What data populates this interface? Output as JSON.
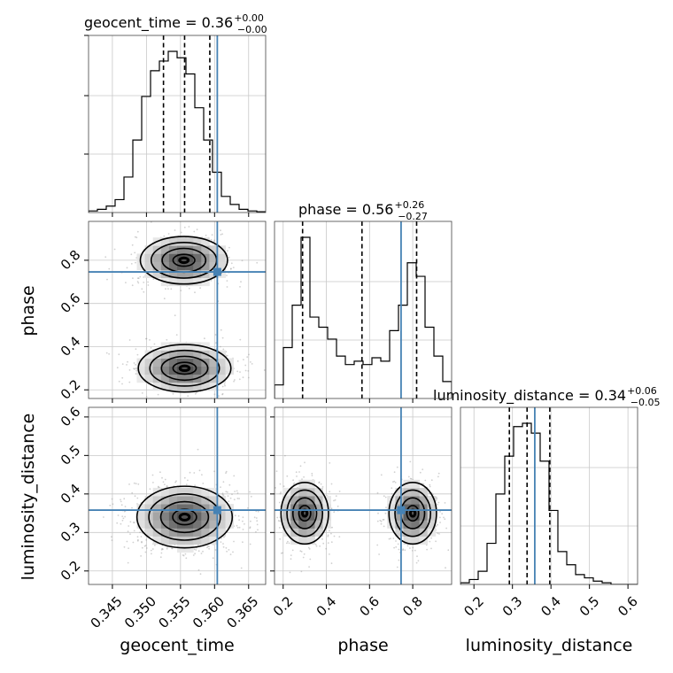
{
  "chart_data": {
    "type": "corner",
    "parameters": [
      {
        "name": "geocent_time",
        "label": "geocent_time",
        "title_text": "geocent_time = 0.36",
        "err_plus": "+0.00",
        "err_minus": "−0.00",
        "range": [
          0.3415,
          0.3675
        ],
        "ticks": [
          "0.345",
          "0.350",
          "0.355",
          "0.360",
          "0.365"
        ],
        "tick_values": [
          0.345,
          0.35,
          0.355,
          0.36,
          0.365
        ],
        "truth": 0.3604,
        "quantiles": [
          0.3525,
          0.3556,
          0.3593
        ],
        "hist": {
          "edges_start": 0.3415,
          "bin_width": 0.0013,
          "values": [
            0.01,
            0.02,
            0.04,
            0.08,
            0.22,
            0.45,
            0.72,
            0.88,
            0.94,
            1.0,
            0.96,
            0.86,
            0.65,
            0.45,
            0.25,
            0.1,
            0.05,
            0.02,
            0.01,
            0.005
          ]
        }
      },
      {
        "name": "phase",
        "label": "phase",
        "title_text": "phase = 0.56",
        "err_plus": "+0.26",
        "err_minus": "−0.27",
        "range": [
          0.16,
          0.98
        ],
        "ticks": [
          "0.2",
          "0.4",
          "0.6",
          "0.8"
        ],
        "tick_values": [
          0.2,
          0.4,
          0.6,
          0.8
        ],
        "truth": 0.746,
        "quantiles": [
          0.29,
          0.565,
          0.818
        ],
        "hist": {
          "edges_start": 0.16,
          "bin_width": 0.041,
          "values": [
            0.08,
            0.3,
            0.55,
            0.95,
            0.48,
            0.42,
            0.35,
            0.25,
            0.2,
            0.22,
            0.2,
            0.24,
            0.22,
            0.4,
            0.55,
            0.8,
            0.72,
            0.42,
            0.25,
            0.1
          ]
        }
      },
      {
        "name": "luminosity_distance",
        "label": "luminosity_distance",
        "title_text": "luminosity_distance = 0.34",
        "err_plus": "+0.06",
        "err_minus": "−0.05",
        "range": [
          0.165,
          0.625
        ],
        "ticks": [
          "0.2",
          "0.3",
          "0.4",
          "0.5",
          "0.6"
        ],
        "tick_values": [
          0.2,
          0.3,
          0.4,
          0.5,
          0.6
        ],
        "truth": 0.358,
        "quantiles": [
          0.292,
          0.338,
          0.397
        ],
        "hist": {
          "edges_start": 0.165,
          "bin_width": 0.023,
          "values": [
            0.01,
            0.03,
            0.08,
            0.25,
            0.55,
            0.78,
            0.96,
            0.98,
            0.92,
            0.75,
            0.45,
            0.2,
            0.12,
            0.06,
            0.04,
            0.02,
            0.01,
            0.0,
            0.0,
            0.0
          ]
        }
      }
    ],
    "pairs": [
      {
        "x": "geocent_time",
        "y": "phase",
        "modes": [
          {
            "x": 0.3555,
            "y": 0.8,
            "sx": 0.0032,
            "sy": 0.055,
            "w": 0.5
          },
          {
            "x": 0.3556,
            "y": 0.3,
            "sx": 0.0034,
            "sy": 0.055,
            "w": 0.5
          }
        ],
        "truth": [
          0.3604,
          0.746
        ]
      },
      {
        "x": "geocent_time",
        "y": "luminosity_distance",
        "modes": [
          {
            "x": 0.3556,
            "y": 0.34,
            "sx": 0.0035,
            "sy": 0.04,
            "w": 1.0
          }
        ],
        "truth": [
          0.3604,
          0.358
        ]
      },
      {
        "x": "phase",
        "y": "luminosity_distance",
        "modes": [
          {
            "x": 0.3,
            "y": 0.35,
            "sx": 0.055,
            "sy": 0.04,
            "w": 0.5
          },
          {
            "x": 0.8,
            "y": 0.35,
            "sx": 0.055,
            "sy": 0.04,
            "w": 0.5
          }
        ],
        "truth": [
          0.746,
          0.358
        ]
      }
    ],
    "grid": true,
    "truth_color": "#4682b4",
    "contour_color": "#000000"
  }
}
